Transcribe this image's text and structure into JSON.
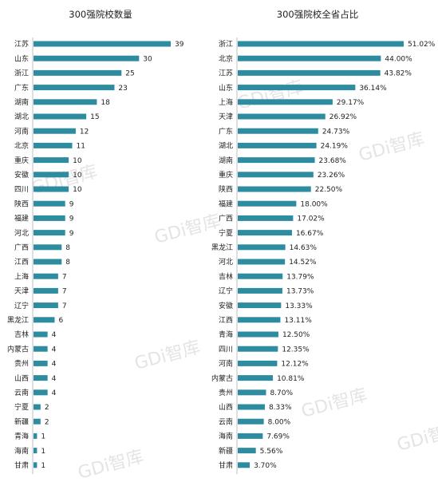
{
  "watermark": "GDi智库",
  "chart_data": [
    {
      "type": "bar",
      "orientation": "horizontal",
      "title": "300强院校数量",
      "categories": [
        "江苏",
        "山东",
        "浙江",
        "广东",
        "湖南",
        "湖北",
        "河南",
        "北京",
        "重庆",
        "安徽",
        "四川",
        "陕西",
        "福建",
        "河北",
        "广西",
        "江西",
        "上海",
        "天津",
        "辽宁",
        "黑龙江",
        "吉林",
        "内蒙古",
        "贵州",
        "山西",
        "云南",
        "宁夏",
        "新疆",
        "青海",
        "海南",
        "甘肃"
      ],
      "values": [
        39,
        30,
        25,
        23,
        18,
        15,
        12,
        11,
        10,
        10,
        10,
        9,
        9,
        9,
        8,
        8,
        7,
        7,
        7,
        6,
        4,
        4,
        4,
        4,
        4,
        2,
        2,
        1,
        1,
        1
      ],
      "value_labels": [
        "39",
        "30",
        "25",
        "23",
        "18",
        "15",
        "12",
        "11",
        "10",
        "10",
        "10",
        "9",
        "9",
        "9",
        "8",
        "8",
        "7",
        "7",
        "7",
        "6",
        "4",
        "4",
        "4",
        "4",
        "4",
        "2",
        "2",
        "1",
        "1",
        "1"
      ],
      "xlim": [
        0,
        39
      ],
      "grid": false,
      "bar_color": "#2e8ca0"
    },
    {
      "type": "bar",
      "orientation": "horizontal",
      "title": "300强院校全省占比",
      "categories": [
        "浙江",
        "北京",
        "江苏",
        "山东",
        "上海",
        "天津",
        "广东",
        "湖北",
        "湖南",
        "重庆",
        "陕西",
        "福建",
        "广西",
        "宁夏",
        "黑龙江",
        "河北",
        "吉林",
        "辽宁",
        "安徽",
        "江西",
        "青海",
        "四川",
        "河南",
        "内蒙古",
        "贵州",
        "山西",
        "云南",
        "海南",
        "新疆",
        "甘肃"
      ],
      "values": [
        51.02,
        44.0,
        43.82,
        36.14,
        29.17,
        26.92,
        24.73,
        24.19,
        23.68,
        23.26,
        22.5,
        18.0,
        17.02,
        16.67,
        14.63,
        14.52,
        13.79,
        13.73,
        13.33,
        13.11,
        12.5,
        12.35,
        12.12,
        10.81,
        8.7,
        8.33,
        8.0,
        7.69,
        5.56,
        3.7
      ],
      "value_labels": [
        "51.02%",
        "44.00%",
        "43.82%",
        "36.14%",
        "29.17%",
        "26.92%",
        "24.73%",
        "24.19%",
        "23.68%",
        "23.26%",
        "22.50%",
        "18.00%",
        "17.02%",
        "16.67%",
        "14.63%",
        "14.52%",
        "13.79%",
        "13.73%",
        "13.33%",
        "13.11%",
        "12.50%",
        "12.35%",
        "12.12%",
        "10.81%",
        "8.70%",
        "8.33%",
        "8.00%",
        "7.69%",
        "5.56%",
        "3.70%"
      ],
      "unit": "%",
      "xlim": [
        0,
        51.02
      ],
      "grid": false,
      "bar_color": "#2e8ca0"
    }
  ]
}
